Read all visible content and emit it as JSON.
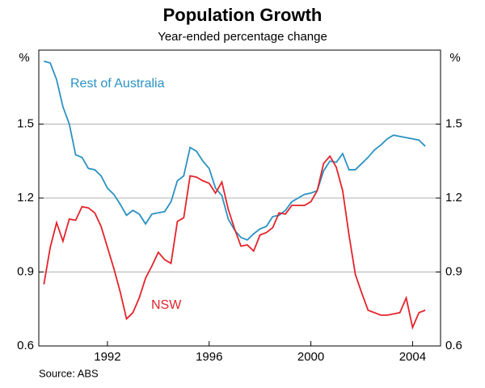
{
  "chart_data": {
    "type": "line",
    "title": "Population Growth",
    "subtitle": "Year-ended percentage change",
    "y_unit": "%",
    "source": "Source: ABS",
    "x": [
      1989.5,
      1989.75,
      1990,
      1990.25,
      1990.5,
      1990.75,
      1991,
      1991.25,
      1991.5,
      1991.75,
      1992,
      1992.25,
      1992.5,
      1992.75,
      1993,
      1993.25,
      1993.5,
      1993.75,
      1994,
      1994.25,
      1994.5,
      1994.75,
      1995,
      1995.25,
      1995.5,
      1995.75,
      1996,
      1996.25,
      1996.5,
      1996.75,
      1997,
      1997.25,
      1997.5,
      1997.75,
      1998,
      1998.25,
      1998.5,
      1998.75,
      1999,
      1999.25,
      1999.5,
      1999.75,
      2000,
      2000.25,
      2000.5,
      2000.75,
      2001,
      2001.25,
      2001.5,
      2001.75,
      2002,
      2002.25,
      2002.5,
      2002.75,
      2003,
      2003.25,
      2003.5,
      2003.75,
      2004,
      2004.25,
      2004.5
    ],
    "series": [
      {
        "name": "Rest of Australia",
        "color": "#2a92c2",
        "values": [
          1.755,
          1.748,
          1.68,
          1.57,
          1.5,
          1.375,
          1.365,
          1.32,
          1.315,
          1.29,
          1.24,
          1.215,
          1.175,
          1.13,
          1.15,
          1.135,
          1.095,
          1.135,
          1.14,
          1.145,
          1.185,
          1.27,
          1.29,
          1.405,
          1.39,
          1.35,
          1.32,
          1.24,
          1.21,
          1.115,
          1.07,
          1.04,
          1.03,
          1.055,
          1.075,
          1.085,
          1.125,
          1.13,
          1.15,
          1.185,
          1.2,
          1.215,
          1.22,
          1.23,
          1.31,
          1.35,
          1.345,
          1.38,
          1.315,
          1.315,
          1.34,
          1.365,
          1.395,
          1.415,
          1.44,
          1.455,
          1.45,
          1.445,
          1.44,
          1.435,
          1.41
        ]
      },
      {
        "name": "NSW",
        "color": "#e3242b",
        "values": [
          0.85,
          1.0,
          1.1,
          1.025,
          1.115,
          1.11,
          1.165,
          1.16,
          1.14,
          1.085,
          1.0,
          0.915,
          0.82,
          0.71,
          0.735,
          0.795,
          0.875,
          0.925,
          0.98,
          0.95,
          0.935,
          1.105,
          1.12,
          1.29,
          1.285,
          1.27,
          1.26,
          1.22,
          1.265,
          1.155,
          1.075,
          1.005,
          1.01,
          0.985,
          1.05,
          1.06,
          1.08,
          1.14,
          1.135,
          1.17,
          1.17,
          1.17,
          1.185,
          1.23,
          1.34,
          1.37,
          1.325,
          1.23,
          1.05,
          0.89,
          0.815,
          0.745,
          0.735,
          0.725,
          0.725,
          0.73,
          0.735,
          0.795,
          0.675,
          0.735,
          0.745
        ]
      }
    ],
    "xlim": [
      1989.3,
      2005.1
    ],
    "xticks": [
      1992,
      1996,
      2000,
      2004
    ],
    "ylim": [
      0.6,
      1.8
    ],
    "yticks": [
      0.6,
      0.9,
      1.2,
      1.5
    ],
    "y2lim": [
      0.6,
      1.8
    ],
    "y2ticks": [
      0.6,
      0.9,
      1.2,
      1.5
    ],
    "grid": true
  }
}
